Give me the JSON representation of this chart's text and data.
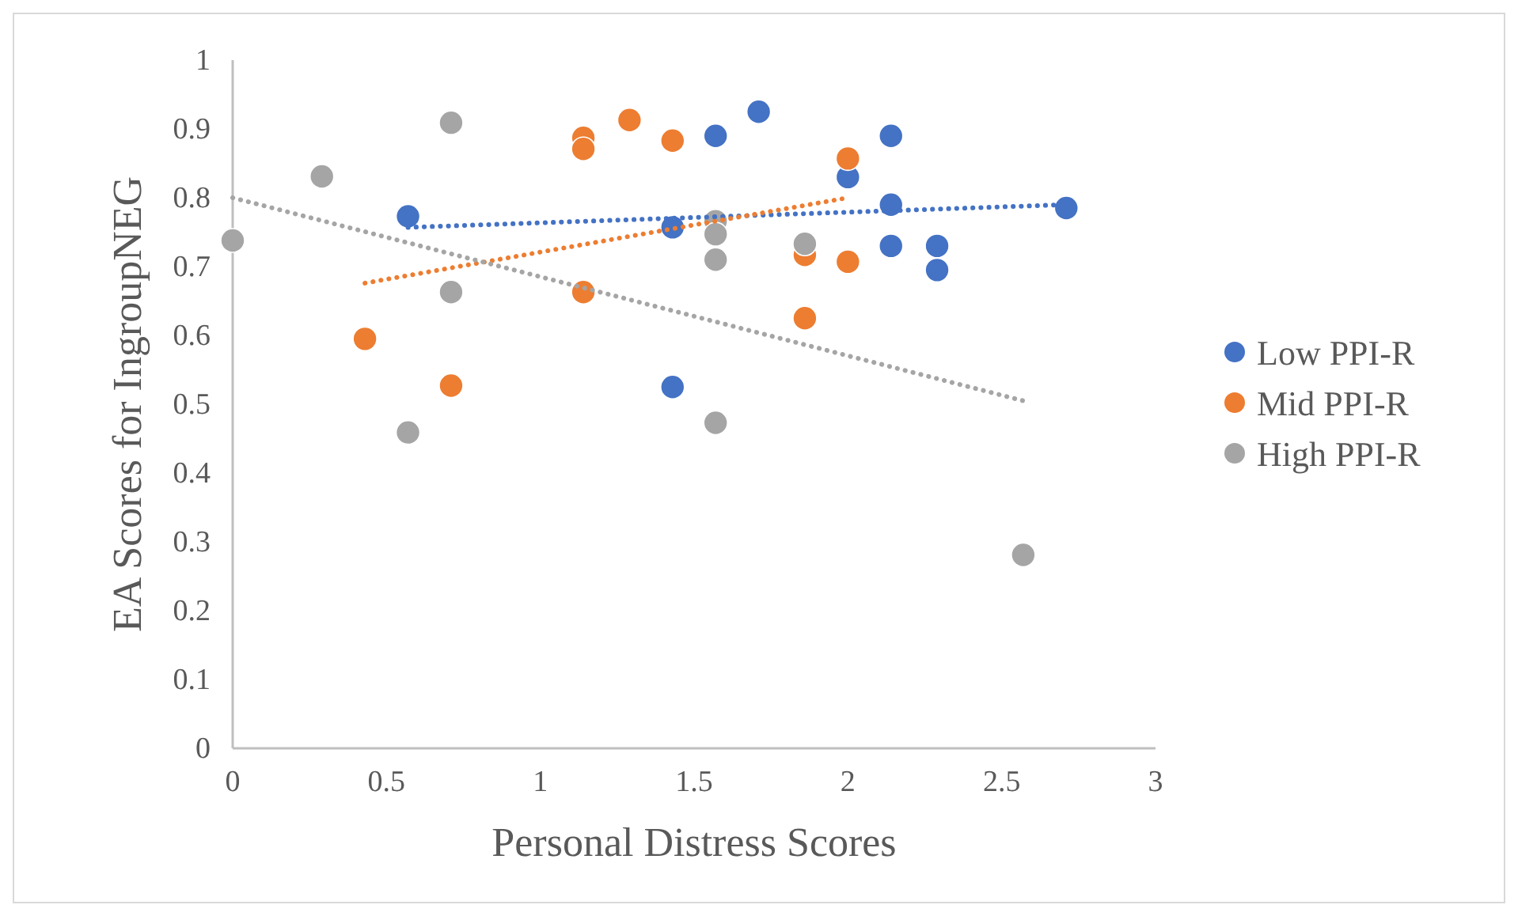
{
  "chart_data": {
    "type": "scatter",
    "xlabel": "Personal Distress Scores",
    "ylabel": "EA Scores for IngroupNEG",
    "xlim": [
      0,
      3
    ],
    "ylim": [
      0,
      1
    ],
    "xticks": [
      0,
      0.5,
      1,
      1.5,
      2,
      2.5,
      3
    ],
    "yticks": [
      0,
      0.1,
      0.2,
      0.3,
      0.4,
      0.5,
      0.6,
      0.7,
      0.8,
      0.9,
      1
    ],
    "grid": false,
    "legend": "right",
    "marker": "circle",
    "series": [
      {
        "name": "Low PPI-R",
        "color": "#4472c4",
        "x": [
          0.57,
          1.43,
          1.57,
          1.71,
          2.14,
          2,
          2.14,
          2.14,
          2.29,
          2.29,
          2.71,
          1.43
        ],
        "values": [
          0.773,
          0.757,
          0.89,
          0.925,
          0.89,
          0.83,
          0.79,
          0.73,
          0.73,
          0.695,
          0.785,
          0.525
        ]
      },
      {
        "name": "Mid PPI-R",
        "color": "#ed7d31",
        "x": [
          0.71,
          0.43,
          1.14,
          1.14,
          1.29,
          1.43,
          1.14,
          1.86,
          2,
          2,
          1.86
        ],
        "values": [
          0.527,
          0.595,
          0.887,
          0.871,
          0.913,
          0.883,
          0.663,
          0.717,
          0.707,
          0.857,
          0.625
        ]
      },
      {
        "name": "High PPI-R",
        "color": "#a5a5a5",
        "x": [
          0,
          0.29,
          0.71,
          0.71,
          0.57,
          1.57,
          1.57,
          1.57,
          1.57,
          1.86,
          2.57
        ],
        "values": [
          0.738,
          0.831,
          0.909,
          0.663,
          0.459,
          0.766,
          0.747,
          0.71,
          0.473,
          0.733,
          0.281
        ]
      },
      {
        "type": "line",
        "color": "#4472c4",
        "marker": "none",
        "line_style": "dotted",
        "x": [
          0.57,
          2.71
        ],
        "values": [
          0.757,
          0.79
        ]
      },
      {
        "type": "line",
        "color": "#ed7d31",
        "marker": "none",
        "line_style": "dotted",
        "x": [
          0.43,
          2
        ],
        "values": [
          0.676,
          0.8
        ]
      },
      {
        "type": "line",
        "color": "#a5a5a5",
        "marker": "none",
        "line_style": "dotted",
        "x": [
          0,
          2.57
        ],
        "values": [
          0.8,
          0.505
        ]
      }
    ]
  }
}
